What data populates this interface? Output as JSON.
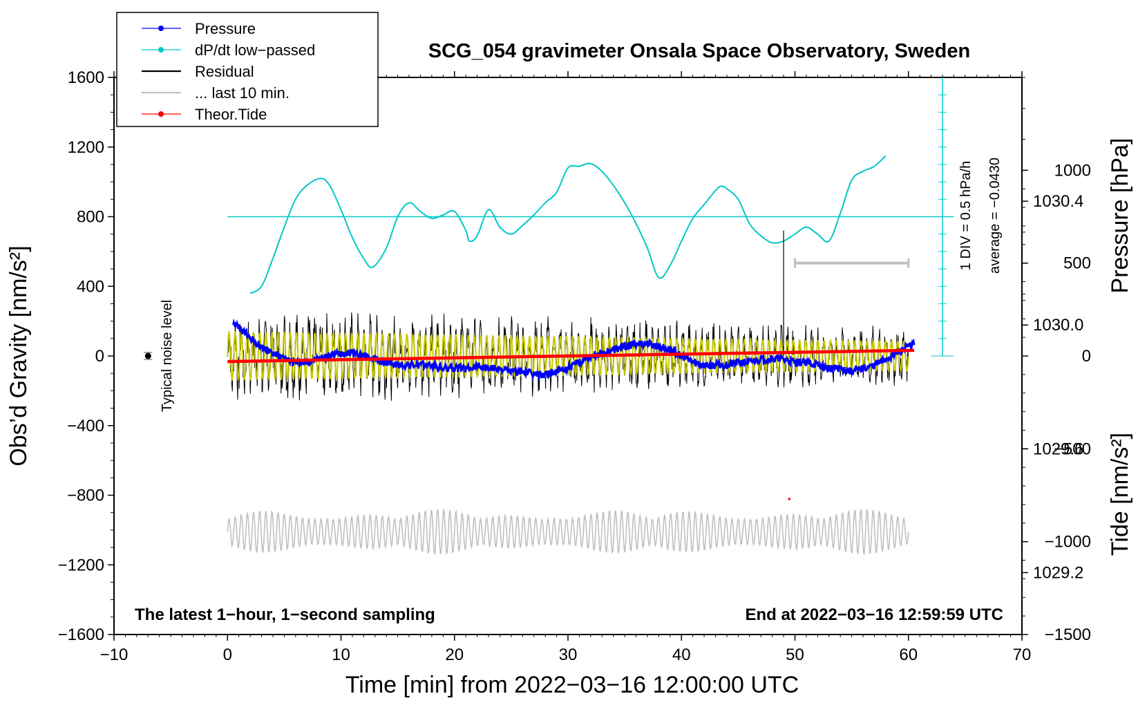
{
  "chart_data": {
    "type": "line",
    "title": "SCG_054 gravimeter Onsala Space Observatory, Sweden",
    "xlabel": "Time [min] from 2022−03−16 12:00:00 UTC",
    "ylabel_main": "Obs’d Gravity [nm/s²]",
    "ylabel_pressure": "Pressure [hPa]",
    "ylabel_tide": "Tide [nm/s²]",
    "xlim": [
      -10,
      70
    ],
    "ylim": [
      -1600,
      1600
    ],
    "pressure_lim": [
      1029.0,
      1030.8
    ],
    "tide_lim": [
      -1500,
      1500
    ],
    "x_ticks": [
      "−10",
      "0",
      "10",
      "20",
      "30",
      "40",
      "50",
      "60",
      "70"
    ],
    "y_ticks": [
      "−1600",
      "−1200",
      "−800",
      "−400",
      "0",
      "400",
      "800",
      "1200",
      "1600"
    ],
    "pressure_ticks": [
      "1029.2",
      "1029.6",
      "1030.0",
      "1030.4"
    ],
    "tide_ticks": [
      "−1500",
      "−1000",
      "−500",
      "0",
      "500",
      "1000"
    ],
    "legend": [
      {
        "label": "Pressure",
        "color": "#0000ff",
        "style": "line-dot"
      },
      {
        "label": "dP/dt low−passed",
        "color": "#00c8c8",
        "style": "line-dot"
      },
      {
        "label": "Residual",
        "color": "#000000",
        "style": "line"
      },
      {
        "label": "... last 10 min.",
        "color": "#c0c0c0",
        "style": "line"
      },
      {
        "label": "Theor.Tide",
        "color": "#ff0000",
        "style": "line-dot"
      }
    ],
    "legend_position": "top-left",
    "noise_label": "Typical noise level",
    "dpdt_scale_label": "1 DIV = 0.5 hPa/h",
    "dpdt_average_label": "average = −0.0430",
    "note_left": "The latest 1−hour, 1−second sampling",
    "note_right": "End at 2022−03−16 12:59:59 UTC",
    "series": [
      {
        "name": "Pressure",
        "axis": "pressure",
        "color": "#0000ff",
        "x": [
          0.5,
          1,
          2,
          3,
          4,
          5,
          6,
          7,
          8,
          9,
          10,
          11,
          12,
          13,
          14,
          15,
          16,
          17,
          18,
          19,
          20,
          21,
          22,
          23,
          24,
          25,
          26,
          27,
          28,
          29,
          30,
          31,
          32,
          33,
          34,
          35,
          36,
          37,
          38,
          39,
          40,
          41,
          42,
          43,
          44,
          45,
          46,
          47,
          48,
          49,
          50,
          51,
          52,
          53,
          54,
          55,
          56,
          57,
          58,
          59,
          60.5
        ],
        "y": [
          1030.01,
          1029.99,
          1029.96,
          1029.93,
          1029.91,
          1029.89,
          1029.88,
          1029.88,
          1029.89,
          1029.9,
          1029.91,
          1029.91,
          1029.9,
          1029.89,
          1029.88,
          1029.87,
          1029.87,
          1029.87,
          1029.87,
          1029.86,
          1029.86,
          1029.86,
          1029.87,
          1029.86,
          1029.86,
          1029.85,
          1029.85,
          1029.84,
          1029.84,
          1029.85,
          1029.86,
          1029.88,
          1029.9,
          1029.91,
          1029.92,
          1029.93,
          1029.94,
          1029.94,
          1029.93,
          1029.92,
          1029.9,
          1029.88,
          1029.87,
          1029.87,
          1029.87,
          1029.88,
          1029.88,
          1029.89,
          1029.89,
          1029.89,
          1029.88,
          1029.88,
          1029.87,
          1029.86,
          1029.86,
          1029.85,
          1029.86,
          1029.87,
          1029.89,
          1029.91,
          1029.94
        ]
      },
      {
        "name": "dP/dt low−passed",
        "axis": "main",
        "color": "#00c8c8",
        "x": [
          2,
          3,
          4,
          5,
          6,
          7,
          8.2,
          9,
          10,
          11,
          12,
          12.8,
          14,
          15,
          16,
          17,
          18,
          19,
          20,
          21,
          21.3,
          22,
          23,
          24,
          25,
          26,
          27,
          28,
          29,
          30,
          31,
          32,
          33,
          34,
          35,
          36,
          37,
          38,
          39,
          40,
          41,
          42,
          43,
          43.5,
          44,
          45,
          46,
          47,
          48,
          49,
          50,
          51,
          52,
          53,
          54,
          55,
          56,
          57,
          58
        ],
        "y": [
          360,
          400,
          560,
          740,
          900,
          980,
          1020,
          980,
          840,
          680,
          560,
          510,
          620,
          800,
          880,
          830,
          790,
          810,
          830,
          720,
          660,
          690,
          840,
          740,
          700,
          750,
          810,
          880,
          940,
          1080,
          1090,
          1105,
          1060,
          980,
          880,
          760,
          620,
          450,
          520,
          660,
          790,
          870,
          950,
          975,
          960,
          900,
          760,
          690,
          650,
          660,
          700,
          740,
          700,
          660,
          820,
          1010,
          1060,
          1090,
          1150
        ]
      },
      {
        "name": "Theor.Tide",
        "axis": "tide",
        "color": "#ff0000",
        "x": [
          0,
          60.5
        ],
        "y": [
          -30,
          30
        ]
      }
    ],
    "dpdt_reference_line": {
      "x": [
        0,
        64
      ],
      "y": 800
    },
    "residual_envelope": {
      "x": [
        0,
        10,
        20,
        30,
        40,
        50,
        60
      ],
      "amplitude": [
        230,
        215,
        200,
        185,
        165,
        150,
        140
      ]
    },
    "residual_spike": {
      "x": 49,
      "y_top": 720,
      "y_bottom": 0
    },
    "noise_bar": {
      "x": -7,
      "y": 0,
      "err": 20
    },
    "tide_range_bar": {
      "x": [
        50,
        60
      ],
      "y": 500
    },
    "tide_outlier": {
      "x": 49.5,
      "y": -770
    },
    "last_10_min": {
      "x_range": [
        0,
        60
      ],
      "center": -1010,
      "amplitude": 130
    }
  }
}
